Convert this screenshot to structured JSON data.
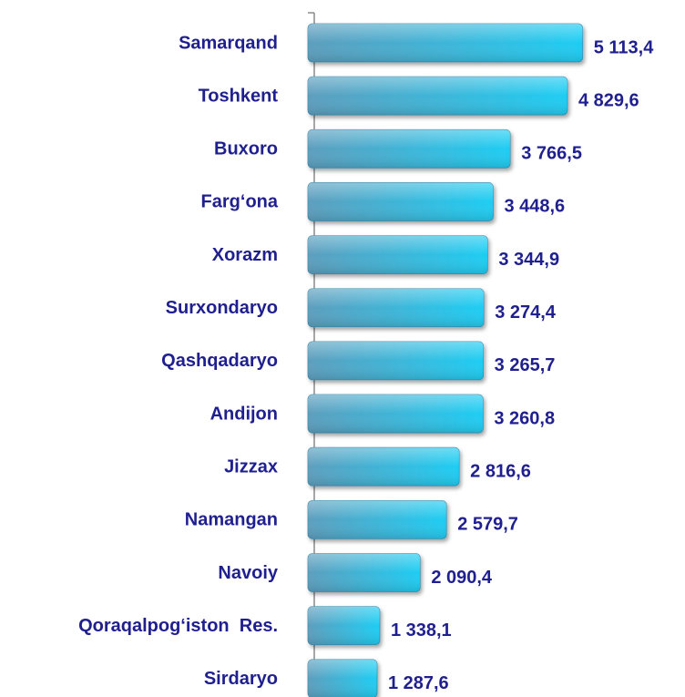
{
  "chart_data": {
    "type": "hbar",
    "categories": [
      "Samarqand",
      "Toshkent",
      "Buxoro",
      "Farg‘ona",
      "Xorazm",
      "Surxondaryo",
      "Qashqadaryo",
      "Andijon",
      "Jizzax",
      "Namangan",
      "Navoiy",
      "Qoraqalpog‘iston  Res.",
      "Sirdaryo"
    ],
    "values": [
      5113.4,
      4829.6,
      3766.5,
      3448.6,
      3344.9,
      3274.4,
      3265.7,
      3260.8,
      2816.6,
      2579.7,
      2090.4,
      1338.1,
      1287.6
    ],
    "value_labels": [
      "5 113,4",
      "4 829,6",
      "3 766,5",
      "3 448,6",
      "3 344,9",
      "3 274,4",
      "3 265,7",
      "3 260,8",
      "2 816,6",
      "2 579,7",
      "2 090,4",
      "1 338,1",
      "1 287,6"
    ],
    "color": "#1ecdf3",
    "xlim": [
      0,
      7000
    ]
  }
}
